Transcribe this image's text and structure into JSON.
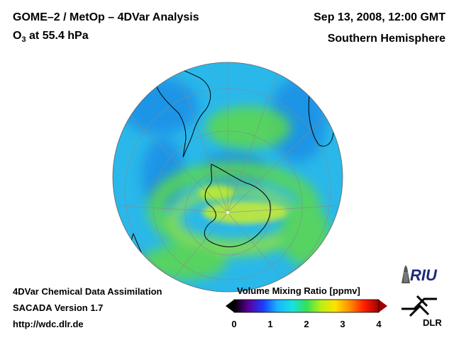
{
  "header": {
    "title_left": "GOME–2 / MetOp – 4DVar Analysis",
    "subtitle_prefix": "O",
    "subtitle_sub": "3",
    "subtitle_suffix": " at 55.4 hPa",
    "title_right": "Sep 13, 2008, 12:00 GMT",
    "subtitle_right": "Southern Hemisphere"
  },
  "info": {
    "line1": "4DVar Chemical Data Assimilation",
    "line2": "SACADA Version 1.7",
    "line3": "http://wdc.dlr.de"
  },
  "legend": {
    "title": "Volume Mixing Ratio [ppmv]",
    "min": 0,
    "max": 4,
    "ticks": [
      "0",
      "1",
      "2",
      "3",
      "4"
    ],
    "colors": [
      "#000000",
      "#5b0099",
      "#1a3cff",
      "#19b4ff",
      "#18e0e0",
      "#34e05a",
      "#b8f014",
      "#ffe100",
      "#ff8c00",
      "#ff1e00",
      "#a00000"
    ]
  },
  "logos": {
    "riu": "RIU",
    "dlr": "DLR"
  },
  "map": {
    "projection": "orthographic",
    "center": "South Pole",
    "ocean_base_color": "#2ab8ea"
  }
}
